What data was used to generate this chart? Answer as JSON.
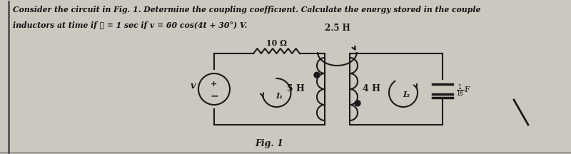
{
  "text_line1": "Consider the circuit in Fig. 1. Determine the coupling coefficıent. Calculate the energy stored in the couple",
  "text_line2": "inductors at time if ℓ = 1 sec if v = 60 cos(4t + 30°) V.",
  "fig_label": "Fig. 1",
  "bg_color": "#ccc8c0",
  "circuit_color": "#1a1a1a",
  "label_2_5H": "2.5 H",
  "label_10ohm": "10 Ω",
  "label_5H": "5 H",
  "label_4H": "4 H",
  "label_I1": "I₁",
  "label_I2": "I₂",
  "label_v": "v"
}
